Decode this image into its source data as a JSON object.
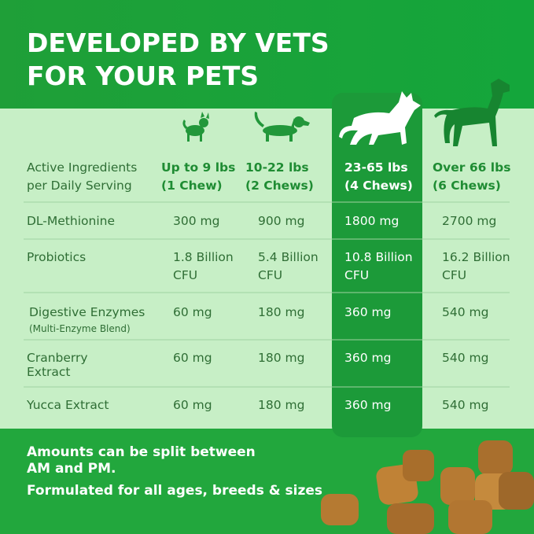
{
  "header": {
    "title": [
      "DEVELOPED BY VETS",
      "FOR YOUR PETS"
    ]
  },
  "table": {
    "columns": [
      [
        "Active Ingredients",
        "per Daily Serving"
      ],
      [
        "Up to 9 lbs",
        "(1 Chew)"
      ],
      [
        "10-22 lbs",
        "(2 Chews)"
      ],
      [
        "23-65 lbs",
        "(4 Chews)"
      ],
      [
        "Over 66 lbs",
        "(6 Chews)"
      ]
    ],
    "rows": [
      [
        [
          "DL-Methionine"
        ],
        [
          "300 mg"
        ],
        [
          "900 mg"
        ],
        [
          "1800 mg"
        ],
        [
          "2700 mg"
        ]
      ],
      [
        [
          "Probiotics"
        ],
        [
          "1.8 Billion",
          "CFU"
        ],
        [
          "5.4 Billion",
          "CFU"
        ],
        [
          "10.8 Billion",
          "CFU"
        ],
        [
          "16.2 Billion",
          "CFU"
        ]
      ],
      [
        [
          "Digestive Enzymes",
          "(Multi-Enzyme Blend)"
        ],
        [
          "60 mg"
        ],
        [
          "180 mg"
        ],
        [
          "360 mg"
        ],
        [
          "540 mg"
        ]
      ],
      [
        [
          "Cranberry",
          "Extract"
        ],
        [
          "60 mg"
        ],
        [
          "180 mg"
        ],
        [
          "360 mg"
        ],
        [
          "540 mg"
        ]
      ],
      [
        [
          "Yucca Extract"
        ],
        [
          "60 mg"
        ],
        [
          "180 mg"
        ],
        [
          "360 mg"
        ],
        [
          "540 mg"
        ]
      ]
    ]
  },
  "footer": {
    "lines": [
      "Amounts can be split between",
      "AM and PM.",
      "Formulated for all ages, breeds & sizes"
    ]
  }
}
